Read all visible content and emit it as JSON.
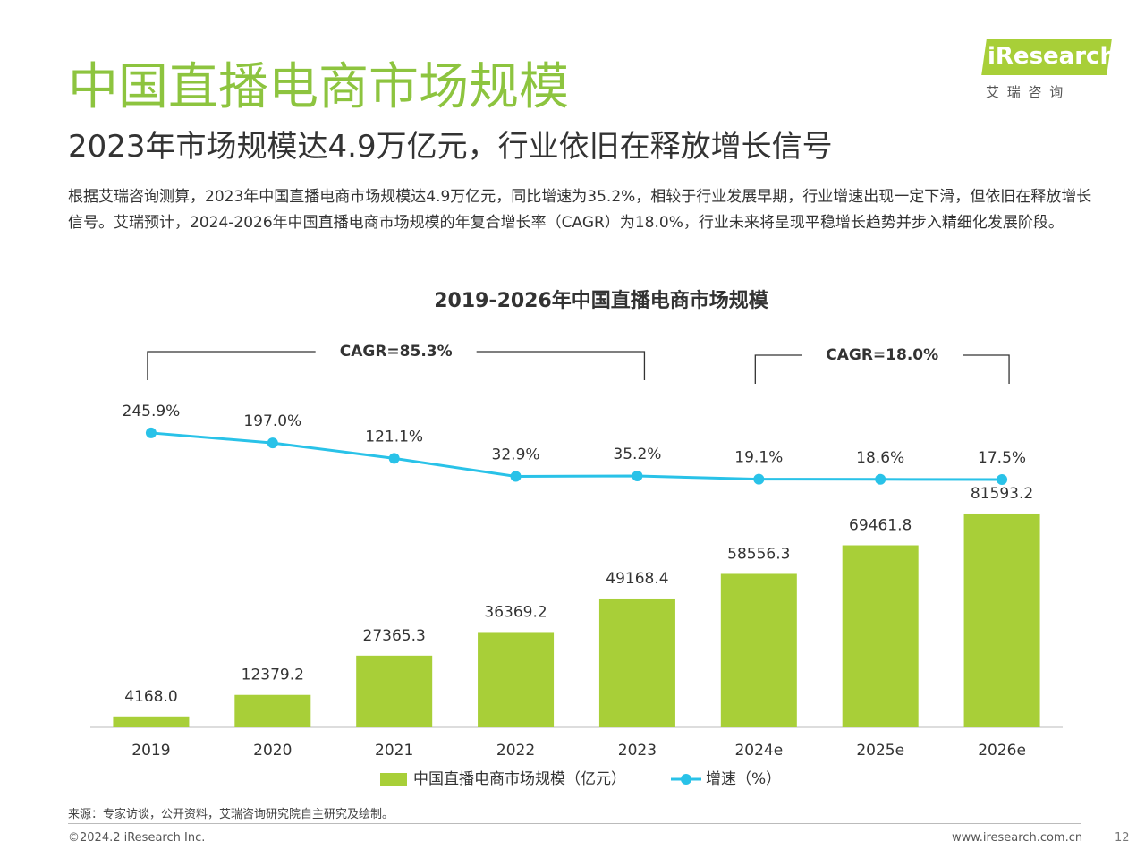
{
  "header": {
    "title": "中国直播电商市场规模",
    "subtitle": "2023年市场规模达4.9万亿元，行业依旧在释放增长信号",
    "description": "根据艾瑞咨询测算，2023年中国直播电商市场规模达4.9万亿元，同比增速为35.2%，相较于行业发展早期，行业增速出现一定下滑，但依旧在释放增长信号。艾瑞预计，2024-2026年中国直播电商市场规模的年复合增长率（CAGR）为18.0%，行业未来将呈现平稳增长趋势并步入精细化发展阶段。"
  },
  "logo": {
    "name": "iResearch",
    "subtitle": "艾 瑞 咨 询"
  },
  "chart_data": {
    "type": "bar",
    "title": "2019-2026年中国直播电商市场规模",
    "categories": [
      "2019",
      "2020",
      "2021",
      "2022",
      "2023",
      "2024e",
      "2025e",
      "2026e"
    ],
    "series": [
      {
        "name": "中国直播电商市场规模（亿元）",
        "color": "#a8cf38",
        "type": "bar",
        "values": [
          4168.0,
          12379.2,
          27365.3,
          36369.2,
          49168.4,
          58556.3,
          69461.8,
          81593.2
        ],
        "value_labels": [
          "4168.0",
          "12379.2",
          "27365.3",
          "36369.2",
          "49168.4",
          "58556.3",
          "69461.8",
          "81593.2"
        ]
      },
      {
        "name": "增速（%）",
        "color": "#29c2e8",
        "type": "line",
        "axis": "y2",
        "values": [
          245.9,
          197.0,
          121.1,
          32.9,
          35.2,
          19.1,
          18.6,
          17.5
        ],
        "value_labels": [
          "245.9%",
          "197.0%",
          "121.1%",
          "32.9%",
          "35.2%",
          "19.1%",
          "18.6%",
          "17.5%"
        ]
      }
    ],
    "ylim": [
      0,
      85000
    ],
    "y2lim": [
      0,
      250
    ],
    "annotations": [
      "CAGR=85.3%",
      "CAGR=18.0%"
    ]
  },
  "footer": {
    "source": "来源：专家访谈，公开资料，艾瑞咨询研究院自主研究及绘制。",
    "copyright": "©2024.2 iResearch Inc.",
    "website": "www.iresearch.com.cn",
    "page": "12"
  }
}
